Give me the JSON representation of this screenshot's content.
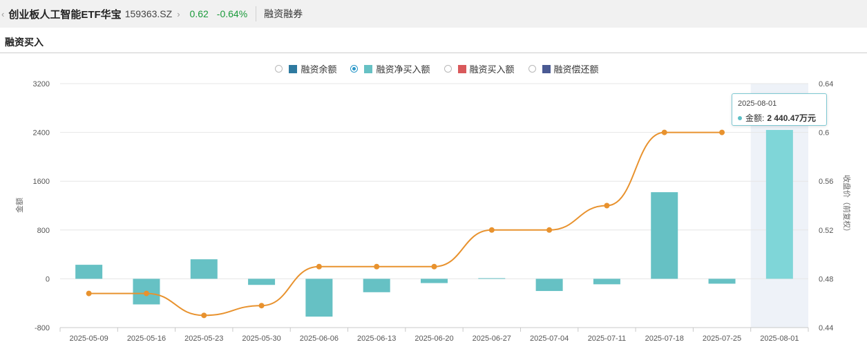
{
  "header": {
    "back_icon": "chevron-left-icon",
    "name": "创业板人工智能ETF华宝",
    "code": "159363.SZ",
    "more_icon": "chevron-right-icon",
    "price": "0.62",
    "change": "-0.64%",
    "link": "融资融券"
  },
  "section": {
    "title": "融资买入"
  },
  "legend": {
    "items": [
      {
        "label": "融资余额",
        "color": "#2e7aa0",
        "selected": false
      },
      {
        "label": "融资净买入额",
        "color": "#66c1c4",
        "selected": true
      },
      {
        "label": "融资买入额",
        "color": "#d9595b",
        "selected": false
      },
      {
        "label": "融资偿还额",
        "color": "#4a5a93",
        "selected": false
      }
    ]
  },
  "tooltip": {
    "date": "2025-08-01",
    "label": "金额:",
    "value": "2 440.47万元"
  },
  "chart_data": {
    "type": "bar",
    "categories": [
      "2025-05-09",
      "2025-05-16",
      "2025-05-23",
      "2025-05-30",
      "2025-06-06",
      "2025-06-13",
      "2025-06-20",
      "2025-06-27",
      "2025-07-04",
      "2025-07-11",
      "2025-07-18",
      "2025-07-25",
      "2025-08-01"
    ],
    "series": [
      {
        "name": "融资净买入额",
        "kind": "bar",
        "axis": "left",
        "color": "#66c1c4",
        "values": [
          230,
          -420,
          320,
          -100,
          -620,
          -220,
          -70,
          10,
          -200,
          -90,
          1420,
          -80,
          2440.47
        ]
      },
      {
        "name": "收盘价（前复权）",
        "kind": "line",
        "axis": "right",
        "color": "#e8922e",
        "values": [
          0.468,
          0.468,
          0.45,
          0.458,
          0.49,
          0.49,
          0.49,
          0.52,
          0.52,
          0.54,
          0.6,
          0.6,
          null
        ]
      }
    ],
    "ylabel": "金额",
    "y2label": "收盘价（前复权）",
    "ylim": [
      -800,
      3200
    ],
    "yticks": [
      -800,
      0,
      800,
      1600,
      2400,
      3200
    ],
    "y2lim": [
      0.44,
      0.64
    ],
    "y2ticks": [
      "0.44",
      "0.48",
      "0.52",
      "0.56",
      "0.6",
      "0.64"
    ],
    "highlight_index": 12,
    "highlight_color": "#7fd6d8",
    "grid": true,
    "legend": "top-center"
  }
}
